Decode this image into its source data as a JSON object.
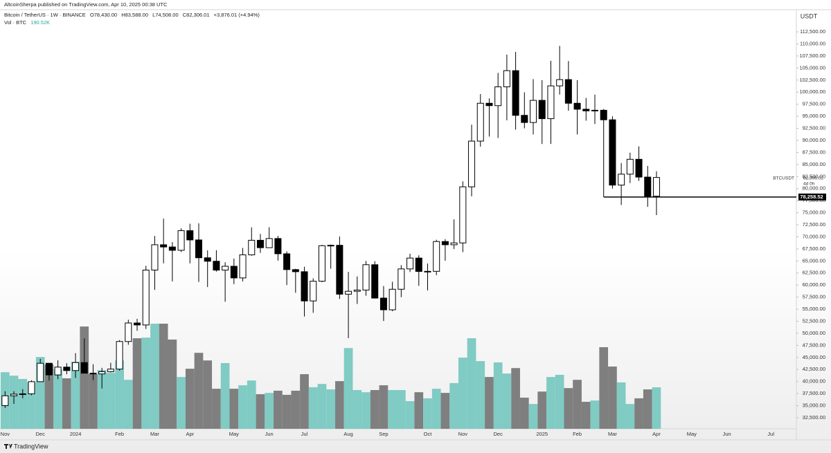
{
  "page": {
    "published": "AltcoinSherpa published on TradingView.com, Apr 10, 2025 00:38 UTC",
    "footer": "TradingView"
  },
  "chart_data": {
    "type": "candlestick",
    "symbol_title": "Bitcoin / TetherUS · 1W · BINANCE",
    "ohlc_header": [
      "O78,430.00",
      "H83,588.00",
      "L74,508.00",
      "C82,306.01",
      "+3,876.01 (+4.94%)"
    ],
    "volume_title": "Vol · BTC",
    "volume_last": "190.52K",
    "currency": "USDT",
    "categories": [
      "Nov",
      null,
      null,
      null,
      "Dec",
      null,
      null,
      null,
      "2024",
      null,
      null,
      null,
      null,
      "Feb",
      null,
      null,
      null,
      "Mar",
      null,
      null,
      null,
      "Apr",
      null,
      null,
      null,
      null,
      "May",
      null,
      null,
      null,
      "Jun",
      null,
      null,
      null,
      "Jul",
      null,
      null,
      null,
      null,
      "Aug",
      null,
      null,
      null,
      "Sep",
      null,
      null,
      null,
      null,
      "Oct",
      null,
      null,
      null,
      "Nov",
      null,
      null,
      null,
      "Dec",
      null,
      null,
      null,
      null,
      "2025",
      null,
      null,
      null,
      "Feb",
      null,
      null,
      null,
      "Mar",
      null,
      null,
      null,
      null,
      "Apr",
      null,
      null,
      null,
      "May",
      null,
      null,
      null,
      "Jun",
      null,
      null,
      null,
      null,
      "Jul",
      null,
      null
    ],
    "candles": {
      "up_color": "#ffffff",
      "down_color": "#000000",
      "open": [
        35010,
        37040,
        37380,
        37450,
        39970,
        43790,
        41370,
        42990,
        42280,
        43930,
        41730,
        41580,
        42030,
        42580,
        48300,
        52140,
        51730,
        63110,
        68360,
        67900,
        67210,
        71280,
        69360,
        65660,
        64940,
        63100,
        63900,
        61480,
        66270,
        69290,
        67750,
        69650,
        66490,
        63210,
        62770,
        56710,
        60800,
        68165,
        68250,
        58110,
        58710,
        58970,
        64220,
        57300,
        54870,
        59130,
        63350,
        65600,
        62830,
        62850,
        69030,
        68360,
        68740,
        80370,
        89850,
        97700,
        97200,
        101100,
        104460,
        95190,
        93710,
        98300,
        94500,
        101300,
        102600,
        97700,
        96460,
        96120,
        96250,
        94270,
        80730,
        83000,
        86080,
        82390,
        78430,
        null,
        null,
        null,
        null,
        null,
        null,
        null,
        null,
        null,
        null,
        null,
        null,
        null,
        null,
        null
      ],
      "high": [
        37980,
        37980,
        38420,
        40250,
        44700,
        43810,
        44400,
        43800,
        45880,
        48970,
        43580,
        42840,
        43880,
        48590,
        52820,
        53000,
        64000,
        70190,
        73780,
        68900,
        71770,
        72720,
        72800,
        67200,
        67230,
        64730,
        65500,
        67700,
        71980,
        70600,
        71980,
        70200,
        66990,
        63370,
        63800,
        61400,
        68350,
        68400,
        70080,
        62750,
        61800,
        65000,
        64960,
        59800,
        60680,
        64130,
        66500,
        66170,
        64480,
        69400,
        69520,
        73620,
        81500,
        93260,
        99600,
        98700,
        104000,
        107800,
        108350,
        99960,
        102700,
        102500,
        106500,
        109590,
        106450,
        102500,
        98800,
        99500,
        96500,
        95000,
        85300,
        87450,
        88760,
        84700,
        83588,
        null,
        null,
        null,
        null,
        null,
        null,
        null,
        null,
        null,
        null,
        null,
        null,
        null,
        null,
        null
      ],
      "low": [
        34530,
        35360,
        36530,
        37150,
        39970,
        40220,
        40500,
        41500,
        40750,
        41720,
        40280,
        38550,
        41880,
        42260,
        47630,
        50520,
        50900,
        59000,
        64500,
        60760,
        66850,
        64500,
        60660,
        59600,
        62790,
        56550,
        60190,
        60750,
        66100,
        66670,
        67750,
        65080,
        60000,
        58400,
        53480,
        54250,
        60600,
        63400,
        57120,
        49000,
        56080,
        57790,
        57200,
        52550,
        54580,
        57490,
        62700,
        59830,
        58900,
        62050,
        65060,
        67460,
        66830,
        78400,
        88700,
        90790,
        90500,
        94150,
        92230,
        92500,
        91220,
        89250,
        89260,
        99500,
        96150,
        91230,
        94090,
        93390,
        78250,
        80000,
        76600,
        81150,
        81600,
        76230,
        74508,
        null,
        null,
        null,
        null,
        null,
        null,
        null,
        null,
        null,
        null,
        null,
        null,
        null,
        null,
        null
      ],
      "close": [
        37040,
        37380,
        37450,
        39970,
        43790,
        41370,
        42990,
        42280,
        43930,
        41730,
        41580,
        42030,
        42580,
        48300,
        52140,
        51730,
        63110,
        68360,
        67900,
        67210,
        71280,
        69360,
        65660,
        64940,
        63100,
        63900,
        61480,
        66270,
        69290,
        67750,
        69650,
        66490,
        63210,
        62770,
        56710,
        60800,
        68165,
        68250,
        58110,
        58710,
        58970,
        64220,
        57300,
        54870,
        59130,
        63350,
        65600,
        62830,
        62850,
        69030,
        68360,
        68740,
        80370,
        89850,
        97700,
        97200,
        101100,
        104460,
        95190,
        93710,
        98300,
        94500,
        101300,
        102600,
        97700,
        96460,
        96120,
        96250,
        94270,
        80730,
        83000,
        86080,
        82390,
        78430,
        82306.01,
        null,
        null,
        null,
        null,
        null,
        null,
        null,
        null,
        null,
        null,
        null,
        null,
        null,
        null,
        null
      ]
    },
    "volume": {
      "up_color": "#80cbc4",
      "down_color": "#7f7f7f",
      "values": [
        260000,
        244000,
        229000,
        213000,
        330000,
        295000,
        273000,
        232000,
        308000,
        470000,
        251000,
        270000,
        257000,
        314000,
        225000,
        416000,
        419000,
        483000,
        483000,
        410000,
        238000,
        276000,
        349000,
        314000,
        184000,
        302000,
        184000,
        200000,
        222000,
        159000,
        165000,
        175000,
        156000,
        175000,
        251000,
        191000,
        206000,
        181000,
        219000,
        371000,
        178000,
        168000,
        178000,
        200000,
        178000,
        178000,
        127000,
        168000,
        140000,
        184000,
        165000,
        210000,
        327000,
        416000,
        311000,
        238000,
        305000,
        254000,
        279000,
        143000,
        114000,
        171000,
        238000,
        248000,
        187000,
        225000,
        124000,
        130000,
        375000,
        286000,
        213000,
        114000,
        140000,
        181000,
        190520,
        null,
        null,
        null,
        null,
        null,
        null,
        null,
        null,
        null,
        null,
        null,
        null,
        null,
        null,
        null
      ]
    },
    "ylim": [
      30200,
      117100
    ],
    "yticks": [
      {
        "value": 32500,
        "label": "32,500.00"
      },
      {
        "value": 35000,
        "label": "35,000.00"
      },
      {
        "value": 37500,
        "label": "37,500.00"
      },
      {
        "value": 40000,
        "label": "40,000.00"
      },
      {
        "value": 42500,
        "label": "42,500.00"
      },
      {
        "value": 45000,
        "label": "45,000.00"
      },
      {
        "value": 47500,
        "label": "47,500.00"
      },
      {
        "value": 50000,
        "label": "50,000.00"
      },
      {
        "value": 52500,
        "label": "52,500.00"
      },
      {
        "value": 55000,
        "label": "55,000.00"
      },
      {
        "value": 57500,
        "label": "57,500.00"
      },
      {
        "value": 60000,
        "label": "60,000.00"
      },
      {
        "value": 62500,
        "label": "62,500.00"
      },
      {
        "value": 65000,
        "label": "65,000.00"
      },
      {
        "value": 67500,
        "label": "67,500.00"
      },
      {
        "value": 70000,
        "label": "70,000.00"
      },
      {
        "value": 72500,
        "label": "72,500.00"
      },
      {
        "value": 75000,
        "label": "75,000.00"
      },
      {
        "value": 77500,
        "label": "77,500.00"
      },
      {
        "value": 80000,
        "label": "80,000.00"
      },
      {
        "value": 82500,
        "label": "82,500.00"
      },
      {
        "value": 85000,
        "label": "85,000.00"
      },
      {
        "value": 87500,
        "label": "87,500.00"
      },
      {
        "value": 90000,
        "label": "90,000.00"
      },
      {
        "value": 92500,
        "label": "92,500.00"
      },
      {
        "value": 95000,
        "label": "95,000.00"
      },
      {
        "value": 97500,
        "label": "97,500.00"
      },
      {
        "value": 100000,
        "label": "100,000.00"
      },
      {
        "value": 102500,
        "label": "102,500.00"
      },
      {
        "value": 105000,
        "label": "105,000.00"
      },
      {
        "value": 107500,
        "label": "107,500.00"
      },
      {
        "value": 110000,
        "label": "110,000.00"
      },
      {
        "value": 112500,
        "label": "112,500.00"
      }
    ],
    "hline": {
      "value": 78258.52,
      "label": "78,258.52"
    },
    "price_tag": {
      "symbol": "BTCUSDT",
      "value": 82306.01,
      "label": "82,306.01",
      "countdown": "4d 0h"
    },
    "grid": false
  }
}
